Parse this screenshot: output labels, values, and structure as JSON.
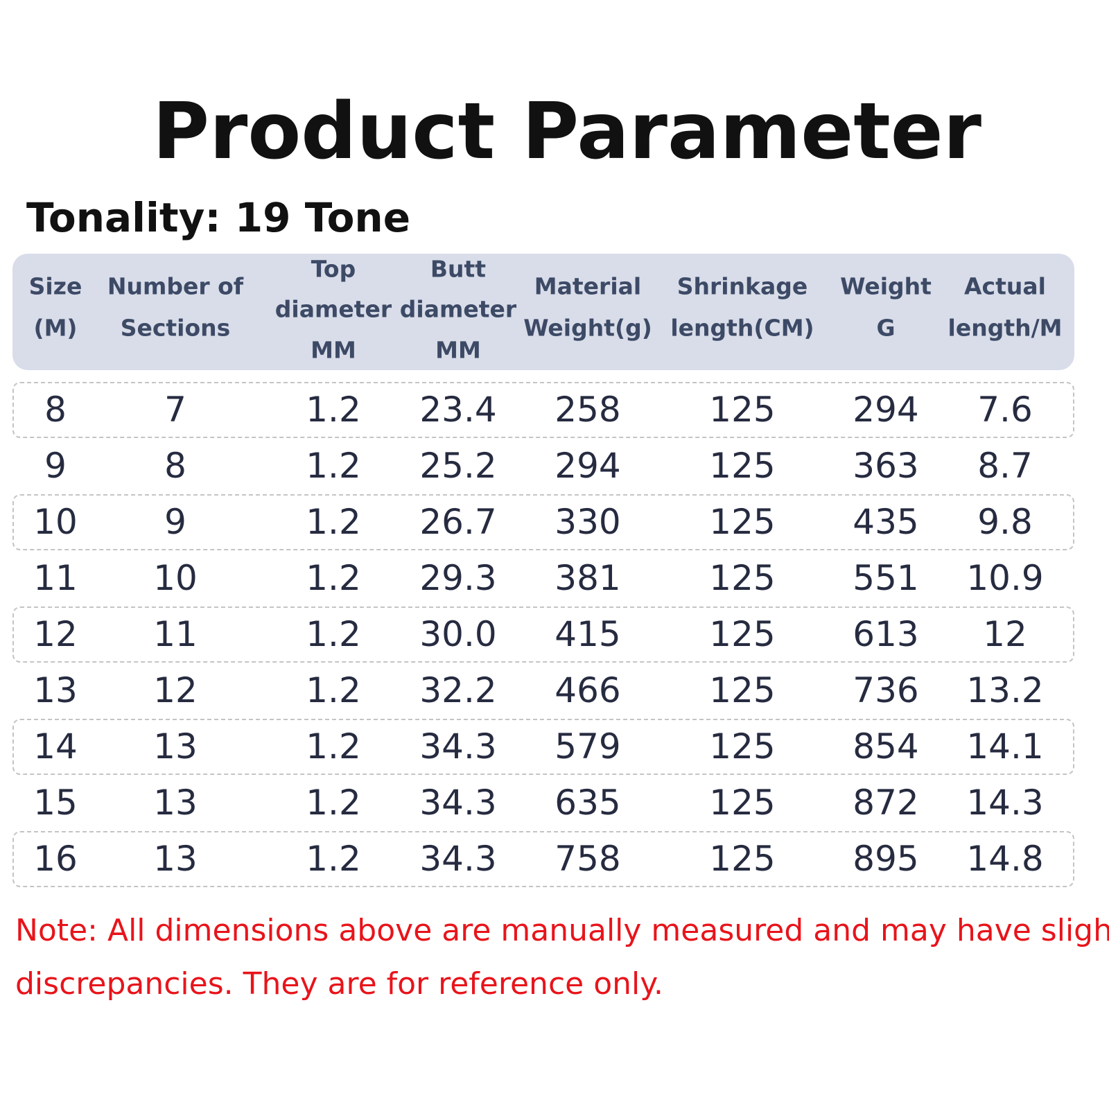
{
  "title": "Product Parameter",
  "subtitle": "Tonality: 19 Tone",
  "table": {
    "header": [
      [
        "Size",
        "(M)"
      ],
      [
        "Number of",
        "Sections"
      ],
      [
        "Top",
        "diameter",
        "MM"
      ],
      [
        "Butt",
        "diameter",
        "MM"
      ],
      [
        "Material",
        "Weight(g)"
      ],
      [
        "Shrinkage",
        "length(CM)"
      ],
      [
        "Weight",
        "G"
      ],
      [
        "Actual",
        "length/M"
      ]
    ],
    "rows": [
      [
        "8",
        "7",
        "1.2",
        "23.4",
        "258",
        "125",
        "294",
        "7.6"
      ],
      [
        "9",
        "8",
        "1.2",
        "25.2",
        "294",
        "125",
        "363",
        "8.7"
      ],
      [
        "10",
        "9",
        "1.2",
        "26.7",
        "330",
        "125",
        "435",
        "9.8"
      ],
      [
        "11",
        "10",
        "1.2",
        "29.3",
        "381",
        "125",
        "551",
        "10.9"
      ],
      [
        "12",
        "11",
        "1.2",
        "30.0",
        "415",
        "125",
        "613",
        "12"
      ],
      [
        "13",
        "12",
        "1.2",
        "32.2",
        "466",
        "125",
        "736",
        "13.2"
      ],
      [
        "14",
        "13",
        "1.2",
        "34.3",
        "579",
        "125",
        "854",
        "14.1"
      ],
      [
        "15",
        "13",
        "1.2",
        "34.3",
        "635",
        "125",
        "872",
        "14.3"
      ],
      [
        "16",
        "13",
        "1.2",
        "34.3",
        "758",
        "125",
        "895",
        "14.8"
      ]
    ]
  },
  "note": [
    "Note: All dimensions above are manually measured and may have slight",
    "discrepancies. They are for reference only."
  ]
}
